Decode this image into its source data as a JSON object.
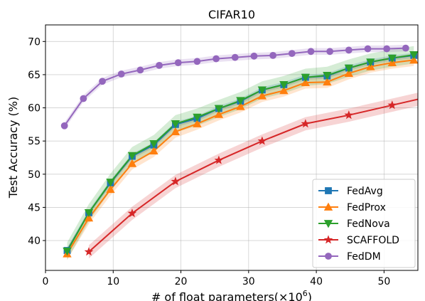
{
  "chart_data": {
    "type": "line",
    "title": "CIFAR10",
    "xlabel": "# of float parameters",
    "xlabel_multiplier": "(×10",
    "xlabel_exponent": "6",
    "xlabel_close": ")",
    "ylabel": "Test Accuracy (%)",
    "xlim": [
      0,
      55
    ],
    "ylim": [
      35.5,
      72.5
    ],
    "xticks": [
      0,
      10,
      20,
      30,
      40,
      50
    ],
    "yticks": [
      40,
      45,
      50,
      55,
      60,
      65,
      70
    ],
    "grid": true,
    "legend_position": "lower-right",
    "series": [
      {
        "name": "FedAvg",
        "color": "#1f77b4",
        "marker": "square",
        "x": [
          3.2,
          6.4,
          9.6,
          12.8,
          16,
          19.2,
          22.4,
          25.6,
          28.8,
          32,
          35.2,
          38.4,
          41.6,
          44.8,
          48,
          51.2,
          54.4
        ],
        "y": [
          38.5,
          44.2,
          48.7,
          52.7,
          54.4,
          57.5,
          58.4,
          59.9,
          61.0,
          62.7,
          63.5,
          64.6,
          64.8,
          66.0,
          66.9,
          67.5,
          67.9
        ],
        "band": 0.4
      },
      {
        "name": "FedProx",
        "color": "#ff7f0e",
        "marker": "triangle-up",
        "x": [
          3.2,
          6.4,
          9.6,
          12.8,
          16,
          19.2,
          22.4,
          25.6,
          28.8,
          32,
          35.2,
          38.4,
          41.6,
          44.8,
          48,
          51.2,
          54.4
        ],
        "y": [
          38.0,
          43.4,
          47.7,
          51.6,
          53.5,
          56.4,
          57.6,
          59.0,
          60.2,
          61.8,
          62.6,
          63.8,
          63.9,
          65.2,
          66.2,
          66.8,
          67.2
        ],
        "band": 0.9
      },
      {
        "name": "FedNova",
        "color": "#2ca02c",
        "marker": "triangle-down",
        "x": [
          3.2,
          6.4,
          9.6,
          12.8,
          16,
          19.2,
          22.4,
          25.6,
          28.8,
          32,
          35.2,
          38.4,
          41.6,
          44.8,
          48,
          51.2,
          54.4
        ],
        "y": [
          38.4,
          44.2,
          48.8,
          52.8,
          54.6,
          57.6,
          58.6,
          59.9,
          61.1,
          62.7,
          63.5,
          64.6,
          64.9,
          66.0,
          66.9,
          67.5,
          68.0
        ],
        "band": 1.3
      },
      {
        "name": "SCAFFOLD",
        "color": "#d62728",
        "marker": "star",
        "x": [
          6.4,
          12.8,
          19.2,
          25.6,
          32,
          38.4,
          44.8,
          51.2,
          57.6
        ],
        "y": [
          38.3,
          44.1,
          48.9,
          52.1,
          55.0,
          57.6,
          58.9,
          60.4,
          61.9
        ],
        "band": 1.0
      },
      {
        "name": "FedDM",
        "color": "#9467bd",
        "marker": "circle",
        "x": [
          2.8,
          5.6,
          8.4,
          11.2,
          14,
          16.8,
          19.6,
          22.4,
          25.2,
          28,
          30.8,
          33.6,
          36.4,
          39.2,
          42,
          44.8,
          47.6,
          50.4,
          53.2
        ],
        "y": [
          57.3,
          61.4,
          64.0,
          65.1,
          65.7,
          66.4,
          66.8,
          67.0,
          67.4,
          67.6,
          67.8,
          67.9,
          68.2,
          68.5,
          68.5,
          68.7,
          68.9,
          68.9,
          69.0
        ],
        "band": 0.5
      }
    ]
  }
}
